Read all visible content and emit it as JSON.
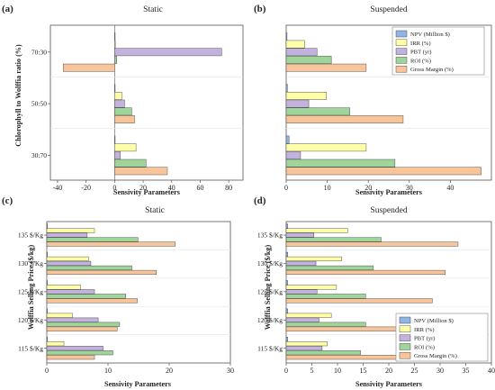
{
  "colors": {
    "NPV": "#8fb4e6",
    "IRR": "#ffffa8",
    "PBT": "#c2b2dd",
    "ROI": "#9fd59a",
    "GM": "#f8c49a"
  },
  "legend": [
    {
      "key": "NPV",
      "label": "NPV (Million $)"
    },
    {
      "key": "IRR",
      "label": "IRR (%)"
    },
    {
      "key": "PBT",
      "label": "PBT (yr)"
    },
    {
      "key": "ROI",
      "label": "ROI (%)"
    },
    {
      "key": "GM",
      "label": "Gross Margin (%)"
    }
  ],
  "chart_data": [
    {
      "id": "a",
      "panel_label": "(a)",
      "type": "bar",
      "orientation": "horizontal",
      "title": "Static",
      "xlabel": "Sensivity Parameters",
      "ylabel": "Chlorophyll to Wolffia ratio (%)",
      "xlim": [
        -45,
        90
      ],
      "xticks": [
        -40,
        -20,
        0,
        20,
        40,
        60,
        80
      ],
      "categories": [
        "30:70",
        "50:50",
        "70:30"
      ],
      "series": [
        {
          "key": "NPV",
          "values": [
            0.2,
            0.2,
            0.2
          ]
        },
        {
          "key": "IRR",
          "values": [
            15,
            5,
            0.5
          ]
        },
        {
          "key": "PBT",
          "values": [
            4,
            7,
            75
          ]
        },
        {
          "key": "ROI",
          "values": [
            22,
            12,
            1.5
          ]
        },
        {
          "key": "GM",
          "values": [
            37,
            14,
            -36
          ]
        }
      ]
    },
    {
      "id": "b",
      "panel_label": "(b)",
      "type": "bar",
      "orientation": "horizontal",
      "title": "Suspended",
      "xlabel": "Sensivity Parameters",
      "ylabel": "",
      "xlim": [
        0,
        50
      ],
      "xticks": [
        0,
        10,
        20,
        30,
        40
      ],
      "categories": [
        "30:70",
        "50:50",
        "70:30"
      ],
      "legend_visible": true,
      "legend_position": "top-right",
      "series": [
        {
          "key": "NPV",
          "values": [
            0.7,
            0.3,
            0.2
          ]
        },
        {
          "key": "IRR",
          "values": [
            19.5,
            9.8,
            4.5
          ]
        },
        {
          "key": "PBT",
          "values": [
            3.5,
            5.5,
            7.5
          ]
        },
        {
          "key": "ROI",
          "values": [
            26.5,
            15.5,
            11
          ]
        },
        {
          "key": "GM",
          "values": [
            47.5,
            28.5,
            19.5
          ]
        }
      ]
    },
    {
      "id": "c",
      "panel_label": "(c)",
      "type": "bar",
      "orientation": "horizontal",
      "title": "Static",
      "xlabel": "Sensivity Parameters",
      "ylabel": "Wolffia Selling Price ($/kg)",
      "xlim": [
        0,
        30
      ],
      "xticks": [
        0,
        10,
        20,
        30
      ],
      "categories": [
        "115 $/Kg",
        "120 $/Kg",
        "125 $/Kg",
        "130 $/Kg",
        "135 $/Kg"
      ],
      "series": [
        {
          "key": "NPV",
          "values": [
            0.1,
            0.1,
            0.1,
            0.1,
            0.1
          ]
        },
        {
          "key": "IRR",
          "values": [
            2.8,
            4.2,
            5.5,
            6.8,
            7.8
          ]
        },
        {
          "key": "PBT",
          "values": [
            9.2,
            8.4,
            7.8,
            7.2,
            6.6
          ]
        },
        {
          "key": "ROI",
          "values": [
            10.8,
            11.9,
            12.9,
            13.9,
            14.9
          ]
        },
        {
          "key": "GM",
          "values": [
            7.8,
            11.5,
            14.8,
            17.9,
            21
          ]
        }
      ]
    },
    {
      "id": "d",
      "panel_label": "(d)",
      "type": "bar",
      "orientation": "horizontal",
      "title": "Suspended",
      "xlabel": "Sensivity Parameters",
      "ylabel": "Wolffia Selling Price ($/kg)",
      "xlim": [
        0,
        40
      ],
      "xticks": [
        0,
        5,
        10,
        15,
        20,
        25,
        30,
        35,
        40
      ],
      "categories": [
        "115 $/Kg",
        "120 $/Kg",
        "125 $/Kg",
        "130 $/Kg",
        "135 $/Kg"
      ],
      "legend_visible": true,
      "legend_position": "bottom-right",
      "series": [
        {
          "key": "NPV",
          "values": [
            0.3,
            0.3,
            0.3,
            0.3,
            0.3
          ]
        },
        {
          "key": "IRR",
          "values": [
            8,
            8.8,
            9.8,
            10.8,
            12
          ]
        },
        {
          "key": "PBT",
          "values": [
            7,
            6.4,
            6,
            5.8,
            5.4
          ]
        },
        {
          "key": "ROI",
          "values": [
            14.5,
            15.5,
            15.5,
            17,
            18.5
          ]
        },
        {
          "key": "GM",
          "values": [
            22.5,
            25.5,
            28.5,
            31,
            33.5
          ]
        }
      ]
    }
  ]
}
